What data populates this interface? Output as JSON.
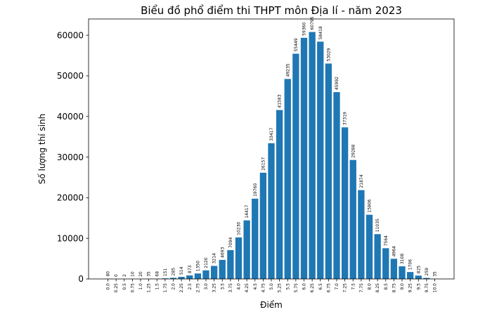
{
  "chart_data": {
    "type": "bar",
    "title": "Biểu đồ phổ điểm thi THPT môn Địa lí - năm 2023",
    "xlabel": "Điểm",
    "ylabel": "Số lượng thí sinh",
    "ylim": [
      0,
      64000
    ],
    "yticks": [
      0,
      10000,
      20000,
      30000,
      40000,
      50000,
      60000
    ],
    "grid": false,
    "categories": [
      "0.0",
      "0.25",
      "0.5",
      "0.75",
      "1.0",
      "1.25",
      "1.5",
      "1.75",
      "2.0",
      "2.25",
      "2.5",
      "2.75",
      "3.0",
      "3.25",
      "3.5",
      "3.75",
      "4.0",
      "4.25",
      "4.5",
      "4.75",
      "5.0",
      "5.25",
      "5.5",
      "5.75",
      "6.0",
      "6.25",
      "6.5",
      "6.75",
      "7.0",
      "7.25",
      "7.5",
      "7.75",
      "8.0",
      "8.25",
      "8.5",
      "8.75",
      "9.0",
      "9.25",
      "9.5",
      "9.75",
      "10.0"
    ],
    "values": [
      80,
      0,
      2,
      10,
      20,
      35,
      68,
      151,
      285,
      514,
      873,
      1350,
      2120,
      3214,
      4693,
      7094,
      10230,
      14417,
      19760,
      26157,
      33417,
      41583,
      49235,
      55449,
      59360,
      60795,
      58418,
      53029,
      45992,
      37319,
      29288,
      21874,
      15806,
      11035,
      7564,
      4964,
      3108,
      1706,
      825,
      259,
      35
    ],
    "colors": {
      "bar": "#1f77b4",
      "axis": "#000000"
    }
  }
}
